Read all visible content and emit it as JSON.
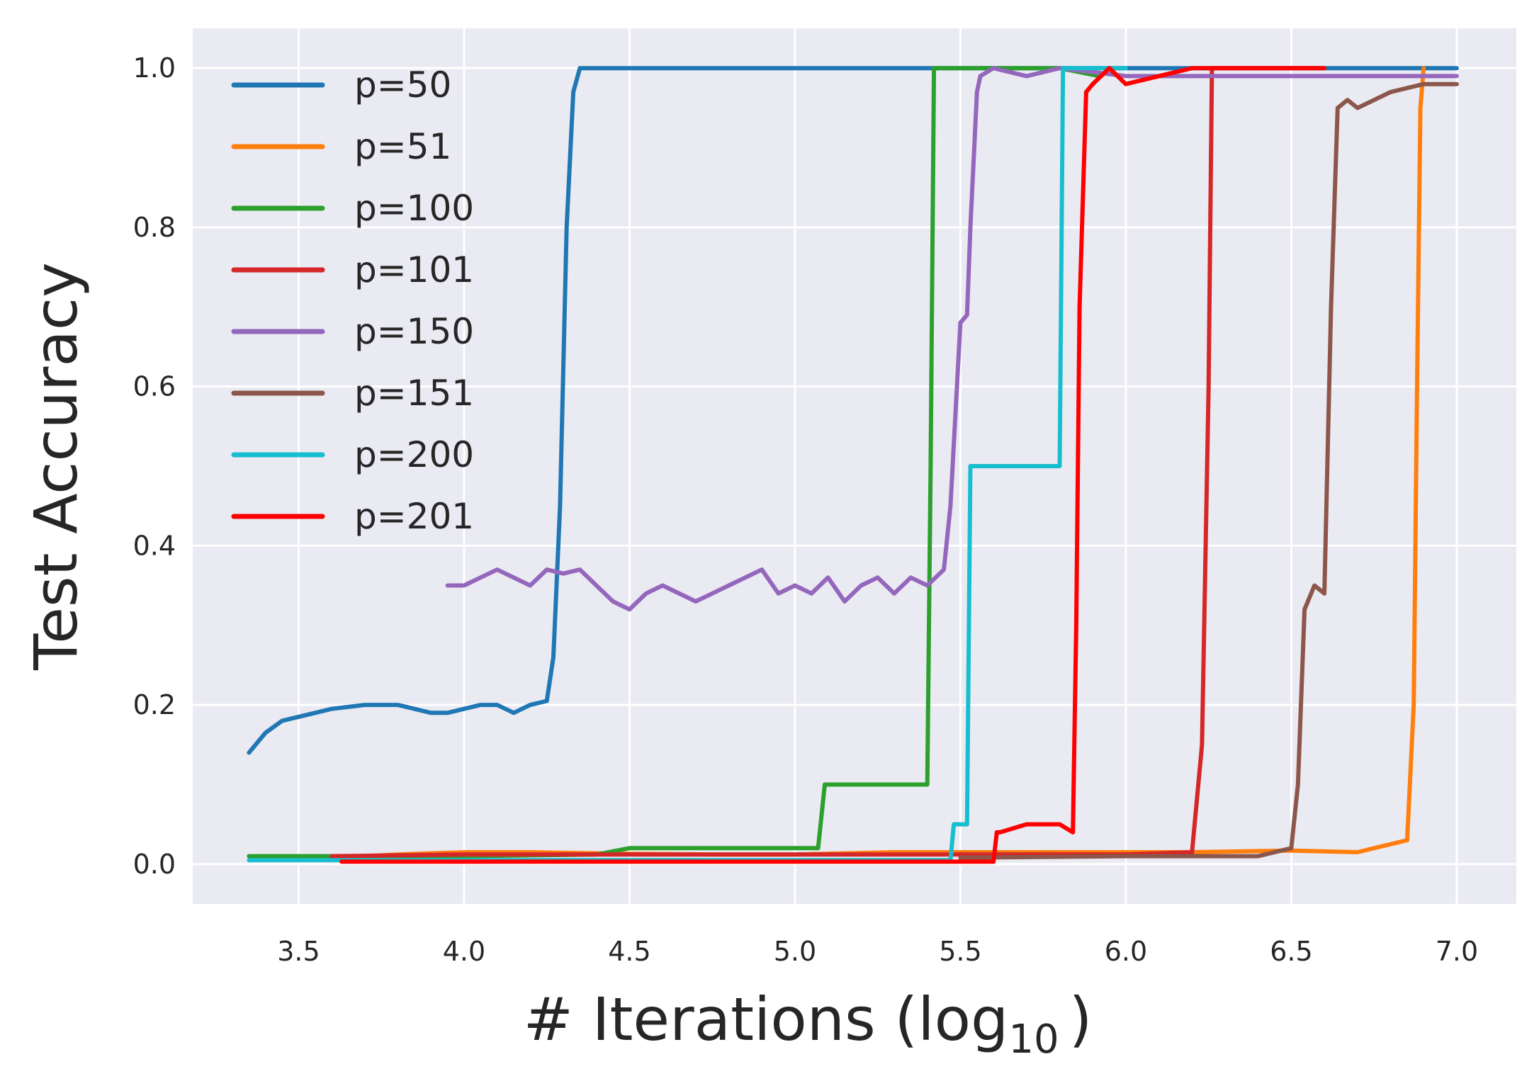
{
  "chart_data": {
    "type": "line",
    "title": "",
    "xlabel": "# Iterations (log",
    "xlabel_sub": "10",
    "xlabel_close": ")",
    "ylabel": "Test Accuracy",
    "xlim": [
      3.18,
      7.18
    ],
    "ylim": [
      -0.05,
      1.05
    ],
    "xticks": [
      3.5,
      4.0,
      4.5,
      5.0,
      5.5,
      6.0,
      6.5,
      7.0
    ],
    "xtick_labels": [
      "3.5",
      "4.0",
      "4.5",
      "5.0",
      "5.5",
      "6.0",
      "6.5",
      "7.0"
    ],
    "yticks": [
      0.0,
      0.2,
      0.4,
      0.6,
      0.8,
      1.0
    ],
    "ytick_labels": [
      "0.0",
      "0.2",
      "0.4",
      "0.6",
      "0.8",
      "1.0"
    ],
    "grid": true,
    "legend_position": "top-left",
    "series": [
      {
        "name": "p=50",
        "color": "#1f77b4",
        "x": [
          3.35,
          3.4,
          3.45,
          3.5,
          3.55,
          3.6,
          3.7,
          3.8,
          3.9,
          3.95,
          4.0,
          4.05,
          4.1,
          4.15,
          4.2,
          4.25,
          4.27,
          4.29,
          4.31,
          4.33,
          4.35,
          4.5,
          5.0,
          5.5,
          6.0,
          6.5,
          7.0
        ],
        "y": [
          0.14,
          0.165,
          0.18,
          0.185,
          0.19,
          0.195,
          0.2,
          0.2,
          0.19,
          0.19,
          0.195,
          0.2,
          0.2,
          0.19,
          0.2,
          0.205,
          0.26,
          0.45,
          0.8,
          0.97,
          1.0,
          1.0,
          1.0,
          1.0,
          1.0,
          1.0,
          1.0
        ]
      },
      {
        "name": "p=51",
        "color": "#ff7f0e",
        "x": [
          3.6,
          3.8,
          4.0,
          4.2,
          4.5,
          4.8,
          5.0,
          5.3,
          5.6,
          5.9,
          6.2,
          6.5,
          6.7,
          6.85,
          6.87,
          6.88,
          6.89,
          6.9
        ],
        "y": [
          0.008,
          0.012,
          0.015,
          0.015,
          0.013,
          0.012,
          0.012,
          0.015,
          0.015,
          0.015,
          0.015,
          0.017,
          0.015,
          0.03,
          0.2,
          0.6,
          0.95,
          1.0
        ]
      },
      {
        "name": "p=100",
        "color": "#2ca02c",
        "x": [
          3.35,
          3.6,
          4.0,
          4.4,
          4.5,
          4.8,
          5.07,
          5.09,
          5.1,
          5.2,
          5.3,
          5.4,
          5.41,
          5.42,
          5.5,
          5.8,
          5.92
        ],
        "y": [
          0.01,
          0.01,
          0.01,
          0.012,
          0.02,
          0.02,
          0.02,
          0.1,
          0.1,
          0.1,
          0.1,
          0.1,
          0.5,
          1.0,
          1.0,
          1.0,
          0.99
        ]
      },
      {
        "name": "p=101",
        "color": "#d62728",
        "x": [
          3.6,
          4.0,
          4.5,
          5.0,
          5.5,
          6.0,
          6.2,
          6.23,
          6.25,
          6.26,
          6.3,
          6.5,
          6.6
        ],
        "y": [
          0.01,
          0.012,
          0.012,
          0.012,
          0.012,
          0.012,
          0.015,
          0.15,
          0.6,
          1.0,
          1.0,
          1.0,
          1.0
        ]
      },
      {
        "name": "p=150",
        "color": "#9467bd",
        "x": [
          3.95,
          4.0,
          4.1,
          4.15,
          4.2,
          4.25,
          4.3,
          4.35,
          4.4,
          4.45,
          4.5,
          4.55,
          4.6,
          4.7,
          4.75,
          4.8,
          4.9,
          4.95,
          5.0,
          5.05,
          5.1,
          5.15,
          5.2,
          5.25,
          5.3,
          5.35,
          5.4,
          5.45,
          5.47,
          5.5,
          5.52,
          5.53,
          5.55,
          5.56,
          5.6,
          5.7,
          5.8,
          6.0,
          6.5,
          7.0
        ],
        "y": [
          0.35,
          0.35,
          0.37,
          0.36,
          0.35,
          0.37,
          0.365,
          0.37,
          0.35,
          0.33,
          0.32,
          0.34,
          0.35,
          0.33,
          0.34,
          0.35,
          0.37,
          0.34,
          0.35,
          0.34,
          0.36,
          0.33,
          0.35,
          0.36,
          0.34,
          0.36,
          0.35,
          0.37,
          0.45,
          0.68,
          0.69,
          0.8,
          0.97,
          0.99,
          1.0,
          0.99,
          1.0,
          0.99,
          0.99,
          0.99
        ]
      },
      {
        "name": "p=151",
        "color": "#8c564b",
        "x": [
          5.5,
          6.0,
          6.4,
          6.5,
          6.52,
          6.54,
          6.57,
          6.6,
          6.62,
          6.64,
          6.67,
          6.7,
          6.8,
          6.9,
          7.0
        ],
        "y": [
          0.008,
          0.01,
          0.01,
          0.02,
          0.1,
          0.32,
          0.35,
          0.34,
          0.7,
          0.95,
          0.96,
          0.95,
          0.97,
          0.98,
          0.98
        ]
      },
      {
        "name": "p=200",
        "color": "#17becf",
        "x": [
          3.35,
          4.0,
          4.5,
          5.0,
          5.47,
          5.48,
          5.52,
          5.53,
          5.6,
          5.7,
          5.8,
          5.81,
          5.82,
          6.0
        ],
        "y": [
          0.005,
          0.005,
          0.005,
          0.005,
          0.005,
          0.05,
          0.05,
          0.5,
          0.5,
          0.5,
          0.5,
          1.0,
          1.0,
          1.0
        ]
      },
      {
        "name": "p=201",
        "color": "#ff0000",
        "x": [
          3.63,
          4.0,
          4.5,
          5.0,
          5.5,
          5.6,
          5.61,
          5.62,
          5.7,
          5.8,
          5.84,
          5.85,
          5.86,
          5.88,
          5.9,
          5.95,
          6.0,
          6.2,
          6.4,
          6.6
        ],
        "y": [
          0.003,
          0.003,
          0.003,
          0.003,
          0.003,
          0.003,
          0.04,
          0.04,
          0.05,
          0.05,
          0.04,
          0.3,
          0.7,
          0.97,
          0.98,
          1.0,
          0.98,
          1.0,
          1.0,
          1.0
        ]
      }
    ]
  }
}
